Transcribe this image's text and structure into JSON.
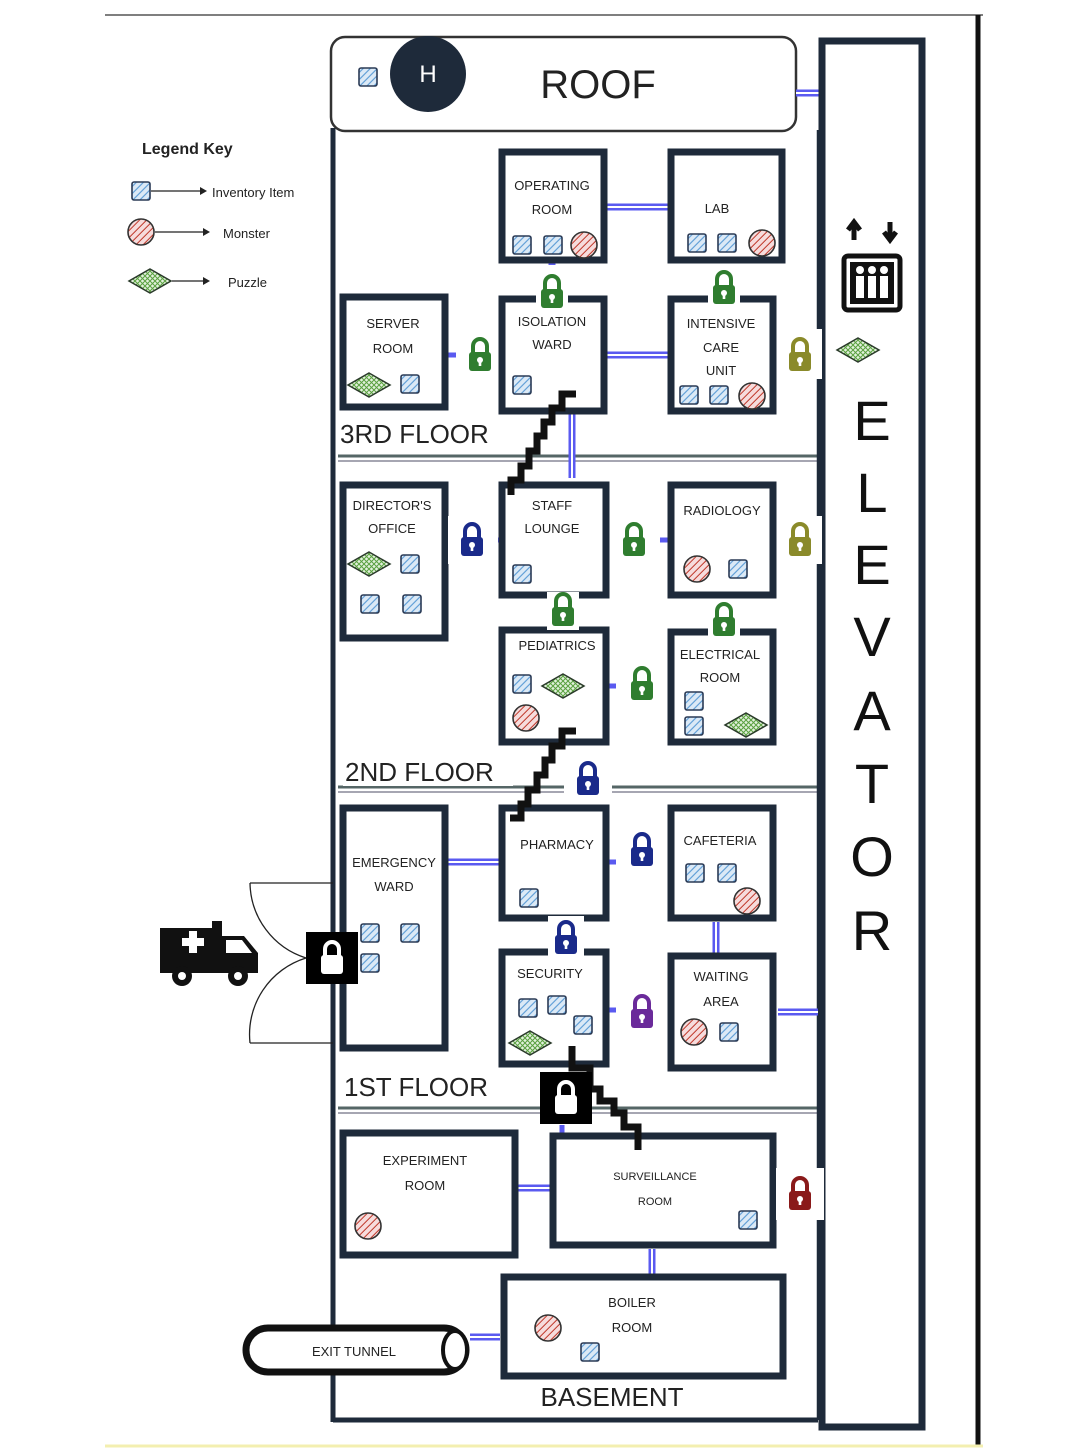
{
  "legend": {
    "title": "Legend Key",
    "items": [
      {
        "icon": "inventory-item-icon",
        "label": "Inventory Item"
      },
      {
        "icon": "monster-icon",
        "label": "Monster"
      },
      {
        "icon": "puzzle-icon",
        "label": "Puzzle"
      }
    ]
  },
  "roof": {
    "helipad": "H",
    "label": "ROOF"
  },
  "elevator": {
    "label": "ELEVATOR",
    "letters": [
      "E",
      "L",
      "E",
      "V",
      "A",
      "T",
      "O",
      "R"
    ]
  },
  "floors": {
    "third": "3RD FLOOR",
    "second": "2ND FLOOR",
    "first": "1ST FLOOR",
    "basement": "BASEMENT"
  },
  "rooms": {
    "operating": [
      "OPERATING",
      "ROOM"
    ],
    "lab": [
      "LAB"
    ],
    "server": [
      "SERVER",
      "ROOM"
    ],
    "isolation": [
      "ISOLATION",
      "WARD"
    ],
    "icu": [
      "INTENSIVE",
      "CARE",
      "UNIT"
    ],
    "director": [
      "DIRECTOR'S",
      "OFFICE"
    ],
    "staff": [
      "STAFF",
      "LOUNGE"
    ],
    "radiology": [
      "RADIOLOGY"
    ],
    "pediatrics": [
      "PEDIATRICS"
    ],
    "electrical": [
      "ELECTRICAL",
      "ROOM"
    ],
    "emergency": [
      "EMERGENCY",
      "WARD"
    ],
    "pharmacy": [
      "PHARMACY"
    ],
    "cafeteria": [
      "CAFETERIA"
    ],
    "security": [
      "SECURITY"
    ],
    "waiting": [
      "WAITING",
      "AREA"
    ],
    "experiment": [
      "EXPERIMENT",
      "ROOM"
    ],
    "surveillance": [
      "SURVEILLANCE",
      "ROOM"
    ],
    "boiler": [
      "BOILER",
      "ROOM"
    ]
  },
  "exit_tunnel": "EXIT TUNNEL",
  "colors": {
    "wall": "#1e2a3a",
    "door": "#5a5af0",
    "lock_green": "#2f7d2f",
    "lock_olive": "#8a8a2a",
    "lock_navy": "#1a2a8a",
    "lock_purple": "#6a2a9a",
    "lock_red": "#8a1a1a",
    "lock_black": "#000000",
    "inventory": "#6aa6d8",
    "monster": "#c0392b",
    "puzzle": "#5aa040"
  }
}
